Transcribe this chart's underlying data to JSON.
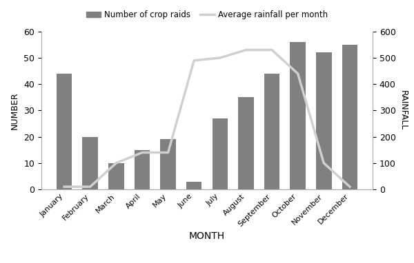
{
  "months": [
    "January",
    "February",
    "March",
    "April",
    "May",
    "June",
    "July",
    "August",
    "September",
    "October",
    "November",
    "December"
  ],
  "crop_raids": [
    44,
    20,
    10,
    15,
    19,
    3,
    27,
    35,
    44,
    56,
    52,
    55
  ],
  "rainfall": [
    10,
    10,
    100,
    140,
    140,
    490,
    500,
    530,
    530,
    440,
    100,
    10
  ],
  "bar_color": "#808080",
  "line_color": "#d0d0d0",
  "bar_label": "Number of crop raids",
  "line_label": "Average rainfall per month",
  "xlabel": "MONTH",
  "ylabel_left": "NUMBER",
  "ylabel_right": "RAINFALL",
  "ylim_left": [
    0,
    60
  ],
  "ylim_right": [
    0,
    600
  ],
  "yticks_left": [
    0,
    10,
    20,
    30,
    40,
    50,
    60
  ],
  "yticks_right": [
    0,
    100,
    200,
    300,
    400,
    500,
    600
  ],
  "figsize": [
    6.0,
    3.82
  ],
  "dpi": 100,
  "bg_color": "#ffffff"
}
